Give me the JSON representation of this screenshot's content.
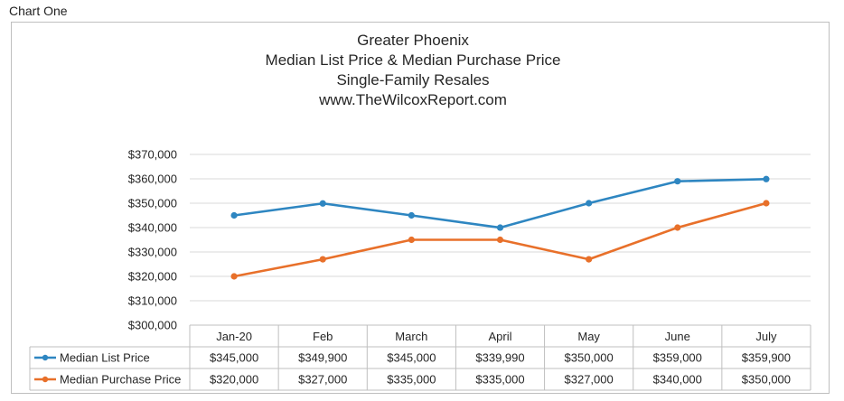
{
  "caption": "Chart One",
  "chart_data": {
    "type": "line",
    "title_lines": [
      "Greater Phoenix",
      "Median List Price & Median Purchase Price",
      "Single-Family Resales",
      "www.TheWilcoxReport.com"
    ],
    "categories": [
      "Jan-20",
      "Feb",
      "March",
      "April",
      "May",
      "June",
      "July"
    ],
    "ylim": [
      300000,
      370000
    ],
    "y_ticks": [
      300000,
      310000,
      320000,
      330000,
      340000,
      350000,
      360000,
      370000
    ],
    "y_tick_labels": [
      "$300,000",
      "$310,000",
      "$320,000",
      "$330,000",
      "$340,000",
      "$350,000",
      "$360,000",
      "$370,000"
    ],
    "grid": true,
    "legend": "data-table",
    "series": [
      {
        "name": "Median List Price",
        "color": "#2e86c1",
        "values": [
          345000,
          349900,
          345000,
          339990,
          350000,
          359000,
          359900
        ],
        "labels": [
          "$345,000",
          "$349,900",
          "$345,000",
          "$339,990",
          "$350,000",
          "$359,000",
          "$359,900"
        ]
      },
      {
        "name": "Median Purchase Price",
        "color": "#e8702a",
        "values": [
          320000,
          327000,
          335000,
          335000,
          327000,
          340000,
          350000
        ],
        "labels": [
          "$320,000",
          "$327,000",
          "$335,000",
          "$335,000",
          "$327,000",
          "$340,000",
          "$350,000"
        ]
      }
    ]
  }
}
